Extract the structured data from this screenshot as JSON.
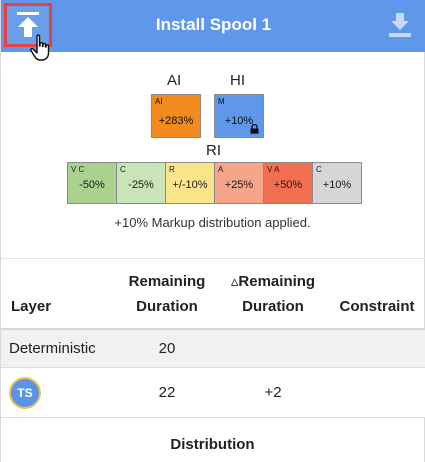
{
  "header": {
    "title": "Install Spool 1"
  },
  "indicators": {
    "ai_label": "AI",
    "hi_label": "HI",
    "ri_label": "RI",
    "ai_box": {
      "tag": "AI",
      "value": "+283%",
      "color": "#f28a1e"
    },
    "hi_box": {
      "tag": "M",
      "value": "+10%",
      "color": "#5f97ea"
    },
    "ri_cells": [
      {
        "tag": "V C",
        "value": "-50%",
        "color": "#a9d28f"
      },
      {
        "tag": "C",
        "value": "-25%",
        "color": "#c9e4b6"
      },
      {
        "tag": "R",
        "value": "+/-10%",
        "color": "#fbe48a"
      },
      {
        "tag": "A",
        "value": "+25%",
        "color": "#f7a58a"
      },
      {
        "tag": "V A",
        "value": "+50%",
        "color": "#f2704f"
      },
      {
        "tag": "C",
        "value": "+10%",
        "color": "#d6d6d6"
      }
    ]
  },
  "applied_text": "+10% Markup distribution applied.",
  "table": {
    "headers": {
      "layer": "Layer",
      "remaining_line1": "Remaining",
      "remaining_line2": "Duration",
      "delta_line1": "▵Remaining",
      "delta_line2": "Duration",
      "constraint": "Constraint"
    },
    "rows": [
      {
        "layer": "Deterministic",
        "remaining": "20",
        "delta": ""
      },
      {
        "avatar": "TS",
        "remaining": "22",
        "delta": "+2"
      }
    ]
  },
  "distribution_label": "Distribution"
}
